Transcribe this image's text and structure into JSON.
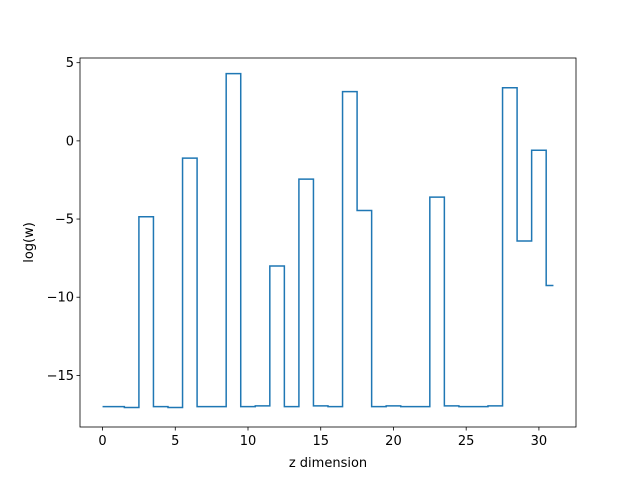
{
  "chart_data": {
    "type": "line",
    "drawstyle": "steps-mid",
    "title": "",
    "xlabel": "z dimension",
    "ylabel": "log(w)",
    "xlim": [
      -1.55,
      32.55
    ],
    "ylim": [
      -18.3,
      5.3
    ],
    "xticks": [
      0,
      5,
      10,
      15,
      20,
      25,
      30
    ],
    "yticks": [
      5,
      0,
      -5,
      -10,
      -15
    ],
    "ytick_labels": [
      "5",
      "0",
      "−5",
      "−10",
      "−15"
    ],
    "grid": false,
    "legend": "none",
    "series": [
      {
        "color": "#1f77b4",
        "x": [
          0,
          1,
          2,
          3,
          4,
          5,
          6,
          7,
          8,
          9,
          10,
          11,
          12,
          13,
          14,
          15,
          16,
          17,
          18,
          19,
          20,
          21,
          22,
          23,
          24,
          25,
          26,
          27,
          28,
          29,
          30,
          31
        ],
        "values": [
          -17.0,
          -17.0,
          -17.05,
          -4.85,
          -17.0,
          -17.05,
          -1.1,
          -17.0,
          -17.0,
          4.3,
          -17.0,
          -16.95,
          -8.0,
          -17.0,
          -2.45,
          -16.95,
          -17.0,
          3.15,
          -4.45,
          -17.0,
          -16.95,
          -17.0,
          -17.0,
          -3.6,
          -16.95,
          -17.0,
          -17.0,
          -16.95,
          3.4,
          -6.4,
          -0.6,
          -9.25
        ]
      }
    ]
  }
}
